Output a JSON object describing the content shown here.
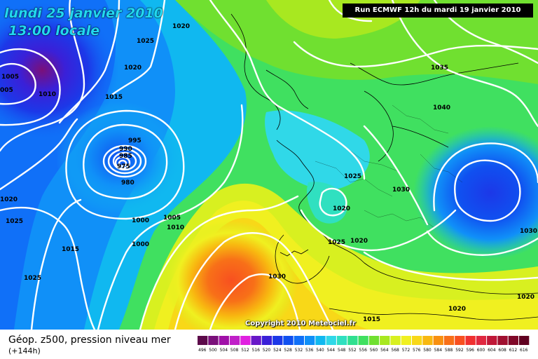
{
  "title": {
    "date": "lundi 25 janvier 2010",
    "time": "13:00 locale"
  },
  "run_info": "Run ECMWF 12h du mardi 19 janvier 2010",
  "copyright": "Copyright 2010 Meteociel.fr",
  "caption": "Géop. z500, pression niveau mer",
  "lead_time": "(+144h)",
  "legend": {
    "values": [
      "496",
      "500",
      "504",
      "508",
      "512",
      "516",
      "520",
      "524",
      "528",
      "532",
      "536",
      "540",
      "544",
      "548",
      "552",
      "556",
      "560",
      "564",
      "568",
      "572",
      "576",
      "580",
      "584",
      "588",
      "592",
      "596",
      "600",
      "604",
      "608",
      "612",
      "616"
    ],
    "colors": [
      "#5c0a4a",
      "#7a107a",
      "#a010a8",
      "#c020c8",
      "#e020e0",
      "#6818c8",
      "#3a20d8",
      "#1c38e8",
      "#1050f0",
      "#1070f8",
      "#1090f8",
      "#10b8f0",
      "#30d8e8",
      "#30e0c0",
      "#30e090",
      "#40e060",
      "#70e030",
      "#a8e820",
      "#d8f020",
      "#f0f020",
      "#f8d818",
      "#f8b810",
      "#f89010",
      "#f87018",
      "#f85020",
      "#f03030",
      "#e02840",
      "#c01838",
      "#a01030",
      "#800828",
      "#600020"
    ]
  },
  "isobar_labels": [
    "1005",
    "005",
    "1010",
    "1015",
    "1020",
    "1025",
    "1020",
    "1025",
    "1020",
    "1015",
    "995",
    "990",
    "985",
    "975",
    "980",
    "1000",
    "1005",
    "1010",
    "1000",
    "1015",
    "1025",
    "1020",
    "1025",
    "1030",
    "1035",
    "1040",
    "1030",
    "1025",
    "1020",
    "1030",
    "1020",
    "1015",
    "1025",
    "1030",
    "1020"
  ],
  "colors": {
    "isobar": "#ffffff",
    "run_box": "#000000",
    "title_text": "#22d8f0"
  }
}
